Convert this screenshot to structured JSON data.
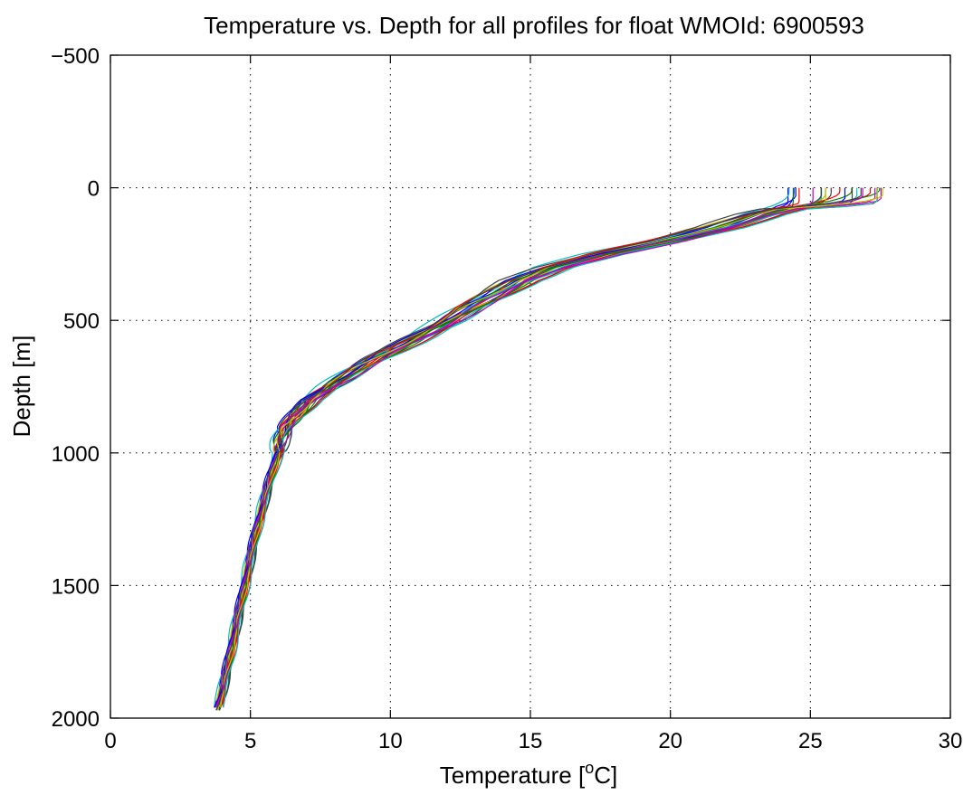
{
  "chart_data": {
    "type": "line",
    "title": "Temperature vs. Depth for all profiles for float WMOId: 6900593",
    "xlabel_main": "Temperature [",
    "xlabel_sup": "o",
    "xlabel_end": "C]",
    "ylabel": "Depth [m]",
    "xlim": [
      0,
      30
    ],
    "ylim": [
      -500,
      2000
    ],
    "y_reversed": true,
    "grid": true,
    "legend": "none",
    "x_ticks": [
      {
        "value": 0,
        "label": "0"
      },
      {
        "value": 5,
        "label": "5"
      },
      {
        "value": 10,
        "label": "10"
      },
      {
        "value": 15,
        "label": "15"
      },
      {
        "value": 20,
        "label": "20"
      },
      {
        "value": 25,
        "label": "25"
      },
      {
        "value": 30,
        "label": "30"
      }
    ],
    "y_ticks": [
      {
        "value": -500,
        "label": "−500"
      },
      {
        "value": 0,
        "label": "0"
      },
      {
        "value": 500,
        "label": "500"
      },
      {
        "value": 1000,
        "label": "1000"
      },
      {
        "value": 1500,
        "label": "1500"
      },
      {
        "value": 2000,
        "label": "2000"
      }
    ],
    "colors": [
      "#0000ff",
      "#008000",
      "#ff0000",
      "#00bfbf",
      "#bf00bf",
      "#bfbf00",
      "#404040"
    ],
    "profile_count": 28,
    "mean_profile": {
      "depth": [
        0,
        30,
        50,
        60,
        80,
        100,
        150,
        200,
        250,
        300,
        350,
        400,
        450,
        500,
        550,
        600,
        650,
        700,
        750,
        800,
        850,
        900,
        950,
        1000,
        1100,
        1200,
        1300,
        1400,
        1500,
        1600,
        1700,
        1800,
        1900,
        1975
      ],
      "temperature": [
        26.4,
        26.4,
        26.3,
        25.6,
        24.0,
        23.2,
        21.8,
        19.9,
        17.6,
        15.8,
        14.6,
        13.8,
        12.9,
        12.1,
        11.2,
        10.3,
        9.4,
        8.6,
        7.8,
        7.1,
        6.7,
        6.3,
        6.1,
        6.0,
        5.7,
        5.45,
        5.2,
        5.0,
        4.8,
        4.6,
        4.4,
        4.2,
        4.0,
        3.8
      ]
    }
  }
}
